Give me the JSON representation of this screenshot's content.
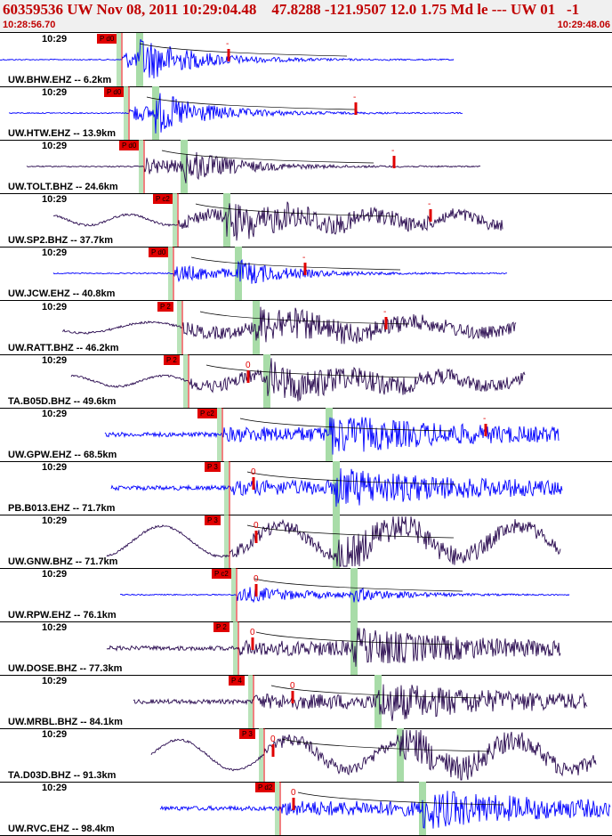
{
  "header": {
    "title": "60359536 UW Nov 08, 2011 10:29:04.48    47.8288 -121.9507 12.0 1.75 Md le --- UW 01   -1",
    "start_time": "10:28:56.70",
    "end_time": "10:29:48.06"
  },
  "colors": {
    "header_text": "#c00000",
    "trace_blue": "#0000ff",
    "trace_purple": "#2a0b50",
    "pick_red": "#e00000",
    "band_green": "#a8dca8"
  },
  "traces": [
    {
      "time": "10:29",
      "station": "UW.BHW.EHZ -- 6.2km",
      "pick": "P d0",
      "s_mark": "-",
      "color": "blue",
      "style": "sharp"
    },
    {
      "time": "10:29",
      "station": "UW.HTW.EHZ -- 13.9km",
      "pick": "P d0",
      "s_mark": "-",
      "color": "blue",
      "style": "sharp"
    },
    {
      "time": "10:29",
      "station": "UW.TOLT.BHZ -- 24.6km",
      "pick": "P d0",
      "s_mark": "-",
      "color": "purple",
      "style": "sharp"
    },
    {
      "time": "10:29",
      "station": "UW.SP2.BHZ -- 37.7km",
      "pick": "P c2",
      "s_mark": "-",
      "color": "purple",
      "style": "wavy"
    },
    {
      "time": "10:29",
      "station": "UW.JCW.EHZ -- 40.8km",
      "pick": "P d0",
      "s_mark": "-",
      "color": "blue",
      "style": "sharp"
    },
    {
      "time": "10:29",
      "station": "UW.RATT.BHZ -- 46.2km",
      "pick": "P 2",
      "s_mark": "-",
      "color": "purple",
      "style": "wavy"
    },
    {
      "time": "10:29",
      "station": "TA.B05D.BHZ -- 49.6km",
      "pick": "P 2",
      "s_mark": "0",
      "color": "purple",
      "style": "wavy"
    },
    {
      "time": "10:29",
      "station": "UW.GPW.EHZ -- 68.5km",
      "pick": "P c2",
      "s_mark": "-",
      "color": "blue",
      "style": "noisy"
    },
    {
      "time": "10:29",
      "station": "PB.B013.EHZ -- 71.7km",
      "pick": "P 3",
      "s_mark": "0",
      "color": "blue",
      "style": "noisy"
    },
    {
      "time": "10:29",
      "station": "UW.GNW.BHZ -- 71.7km",
      "pick": "P 3",
      "s_mark": "0",
      "color": "purple",
      "style": "long"
    },
    {
      "time": "10:29",
      "station": "UW.RPW.EHZ -- 76.1km",
      "pick": "P c2",
      "s_mark": "0",
      "color": "blue",
      "style": "sharp"
    },
    {
      "time": "10:29",
      "station": "UW.DOSE.BHZ -- 77.3km",
      "pick": "P 2",
      "s_mark": "0",
      "color": "purple",
      "style": "noisy"
    },
    {
      "time": "10:29",
      "station": "UW.MRBL.BHZ -- 84.1km",
      "pick": "P 4",
      "s_mark": "0",
      "color": "purple",
      "style": "noisy"
    },
    {
      "time": "10:29",
      "station": "TA.D03D.BHZ -- 91.3km",
      "pick": "P 3",
      "s_mark": "0",
      "color": "purple",
      "style": "long"
    },
    {
      "time": "10:29",
      "station": "UW.RVC.EHZ -- 98.4km",
      "pick": "P d2",
      "s_mark": "0",
      "color": "blue",
      "style": "noisy"
    }
  ]
}
